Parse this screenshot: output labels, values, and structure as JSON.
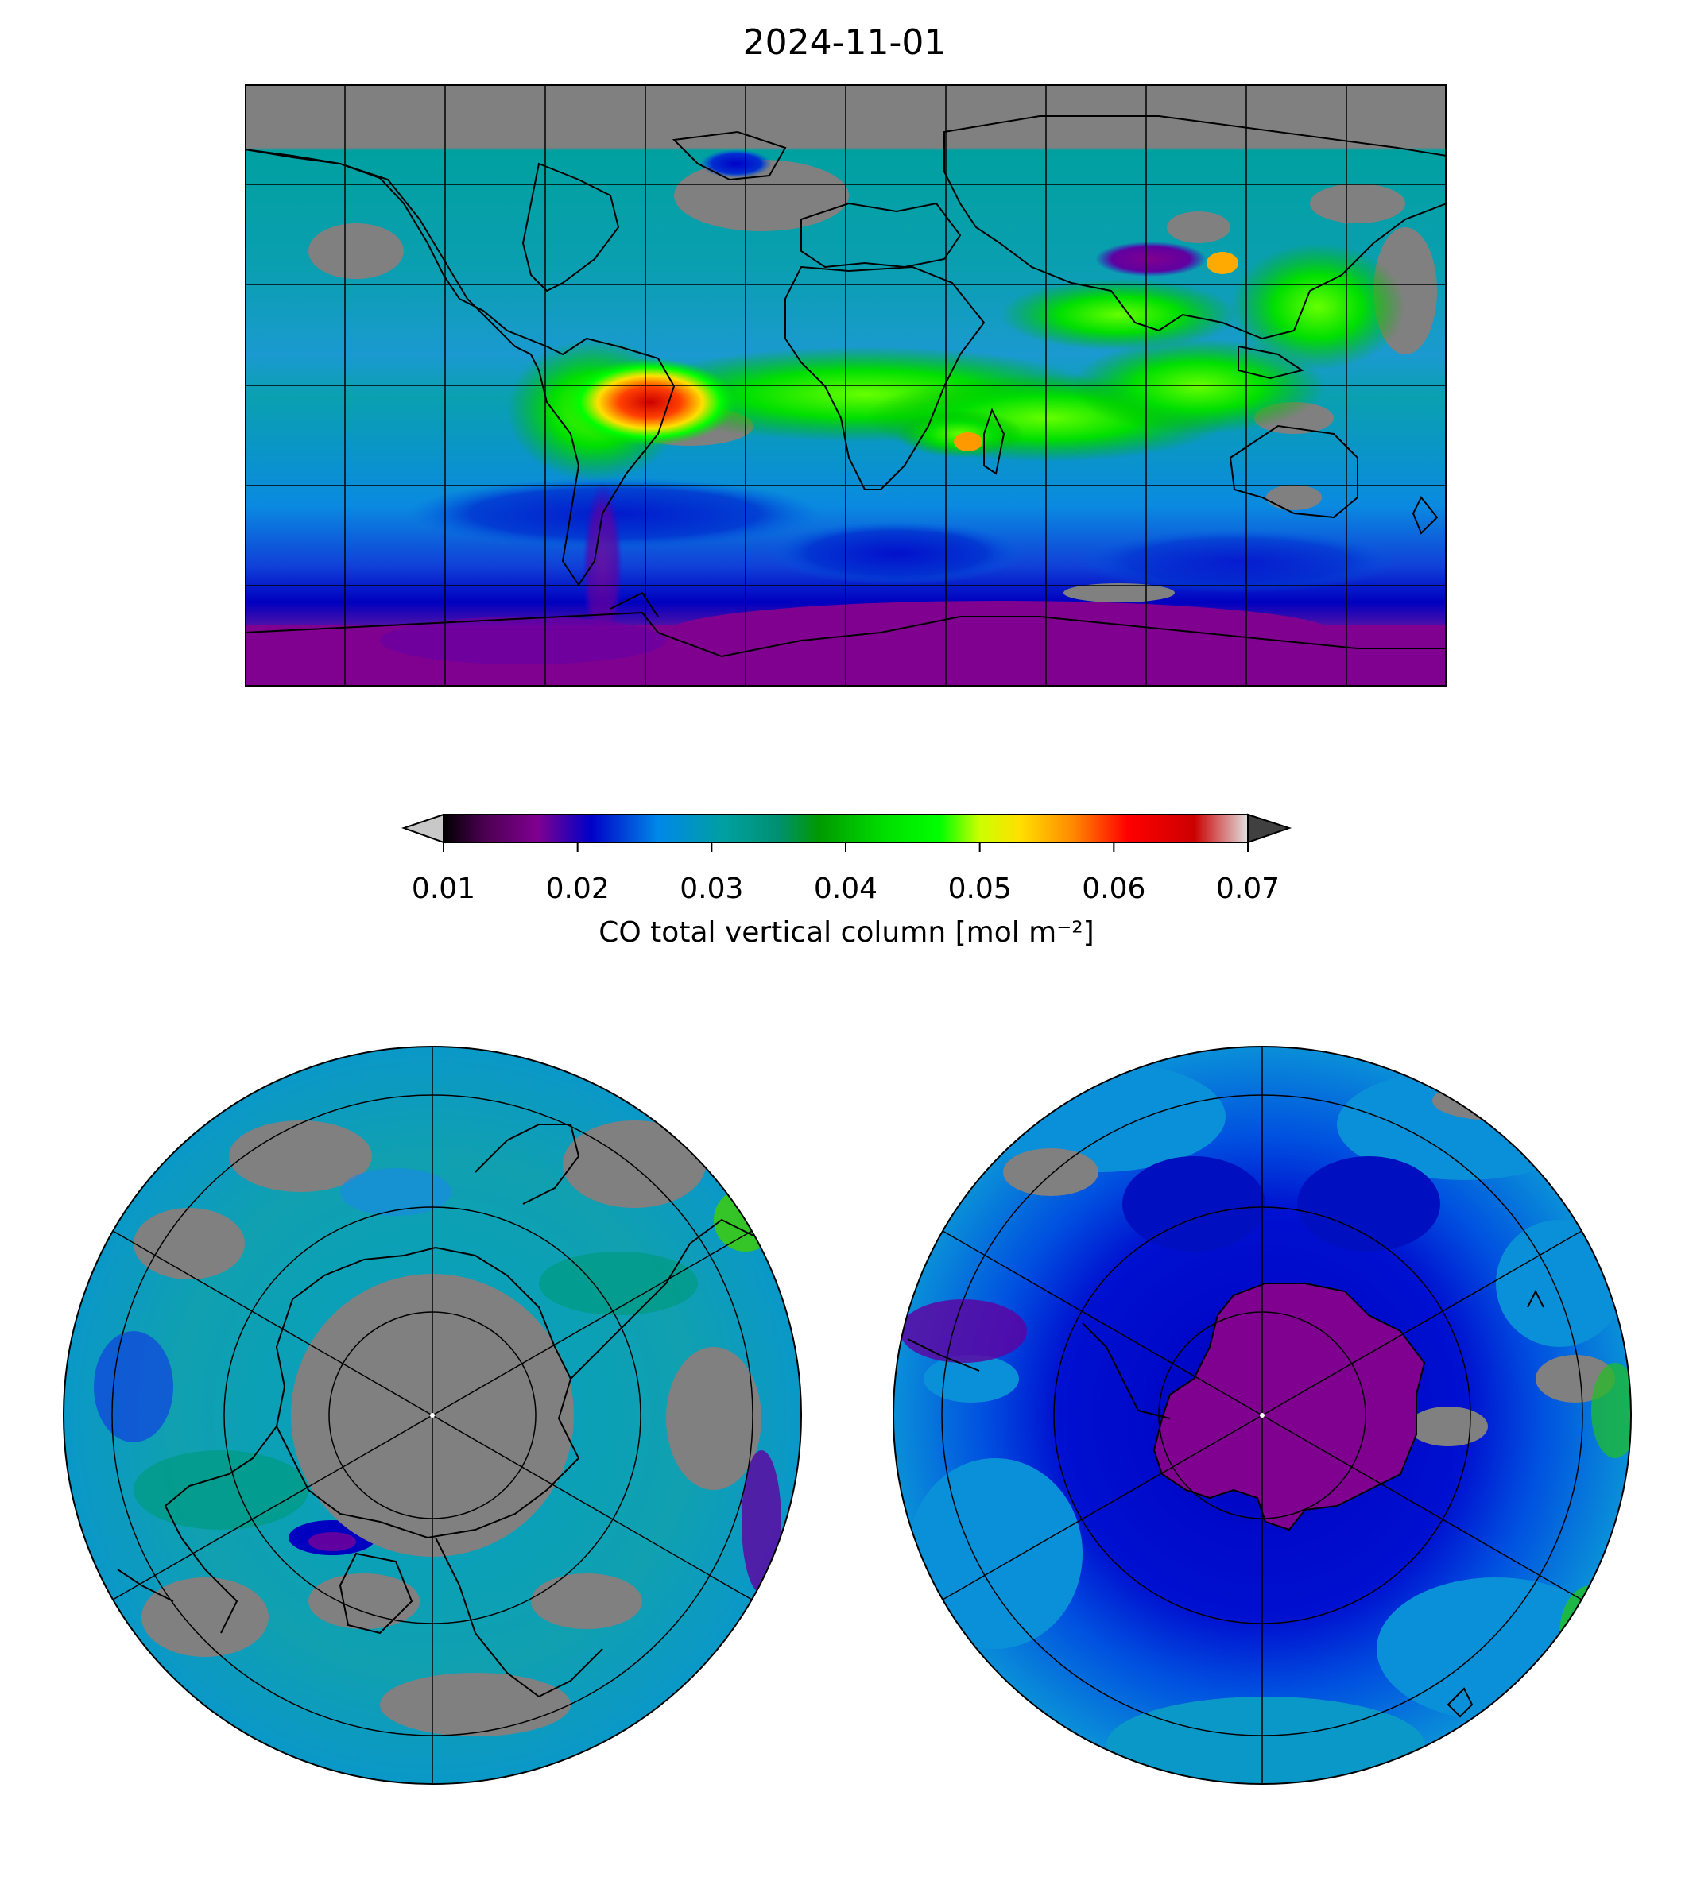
{
  "title": "2024-11-01",
  "colorbar": {
    "label": "CO total vertical column [mol m⁻²]",
    "ticks": [
      "0.01",
      "0.02",
      "0.03",
      "0.04",
      "0.05",
      "0.06",
      "0.07"
    ],
    "range": [
      0.01,
      0.07
    ],
    "extend": "both",
    "under_color": "#c8c8c8",
    "over_color": "#404040",
    "colormap_stops": [
      {
        "value": 0.01,
        "color": "#000000"
      },
      {
        "value": 0.013,
        "color": "#4a0050"
      },
      {
        "value": 0.017,
        "color": "#800090"
      },
      {
        "value": 0.021,
        "color": "#0000c8"
      },
      {
        "value": 0.026,
        "color": "#0088e8"
      },
      {
        "value": 0.031,
        "color": "#00a0a0"
      },
      {
        "value": 0.035,
        "color": "#009070"
      },
      {
        "value": 0.038,
        "color": "#009900"
      },
      {
        "value": 0.043,
        "color": "#00e000"
      },
      {
        "value": 0.047,
        "color": "#00ff00"
      },
      {
        "value": 0.05,
        "color": "#ccff00"
      },
      {
        "value": 0.053,
        "color": "#ffe000"
      },
      {
        "value": 0.057,
        "color": "#ff8800"
      },
      {
        "value": 0.061,
        "color": "#ff0000"
      },
      {
        "value": 0.066,
        "color": "#cc0000"
      },
      {
        "value": 0.07,
        "color": "#e0e0e0"
      }
    ],
    "missing_color": "#808080"
  },
  "maps": {
    "world": {
      "projection": "plate-carree",
      "gridlines": true
    },
    "north_pole": {
      "projection": "north-polar-stereographic",
      "gridlines": true
    },
    "south_pole": {
      "projection": "south-polar-stereographic",
      "gridlines": true
    }
  }
}
